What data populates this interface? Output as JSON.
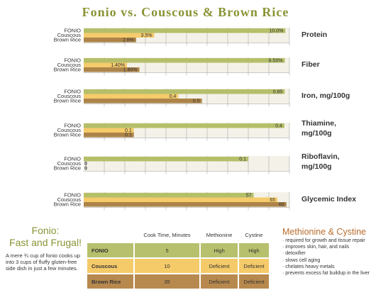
{
  "title": "Fonio vs. Couscous & Brown Rice",
  "colors": {
    "fonio": "#b5bf6a",
    "couscous": "#f5cb6c",
    "brown_rice": "#ad8449",
    "title": "#8a9434",
    "accent": "#b86c2c"
  },
  "chart_data": [
    {
      "type": "bar",
      "title": "Protein",
      "categories": [
        "FONIO",
        "Couscous",
        "Brown Rice"
      ],
      "values": [
        10.0,
        3.5,
        2.6
      ],
      "labels": [
        "10.0%",
        "3.5%",
        "2.6%"
      ],
      "xlim": [
        0,
        10.2
      ]
    },
    {
      "type": "bar",
      "title": "Fiber",
      "categories": [
        "FONIO",
        "Couscous",
        "Brown Rice"
      ],
      "values": [
        6.5,
        1.4,
        1.8
      ],
      "labels": [
        "6.50%",
        "1.40%",
        "1.80%"
      ],
      "xlim": [
        0,
        6.65
      ]
    },
    {
      "type": "bar",
      "title": "Iron, mg/100g",
      "categories": [
        "FONIO",
        "Couscous",
        "Brown Rice"
      ],
      "values": [
        0.85,
        0.4,
        0.5
      ],
      "labels": [
        "0.85",
        "0.4",
        "0.5"
      ],
      "xlim": [
        0,
        0.87
      ]
    },
    {
      "type": "bar",
      "title": "Thiamine, mg/100g",
      "categories": [
        "FONIO",
        "Couscous",
        "Brown Rice"
      ],
      "values": [
        0.4,
        0.1,
        0.1
      ],
      "labels": [
        "0.4",
        "0.1",
        "0.1"
      ],
      "xlim": [
        0,
        0.41
      ]
    },
    {
      "type": "bar",
      "title": "Riboflavin, mg/100g",
      "categories": [
        "FONIO",
        "Couscous",
        "Brown Rice"
      ],
      "values": [
        0.1,
        0,
        0
      ],
      "labels": [
        "0.1",
        "0",
        "0"
      ],
      "xlim": [
        0,
        0.125
      ]
    },
    {
      "type": "bar",
      "title": "Glycemic Index",
      "categories": [
        "FONIO",
        "Couscous",
        "Brown Rice"
      ],
      "values": [
        57,
        65,
        68
      ],
      "labels": [
        "57",
        "65",
        "68"
      ],
      "xlim": [
        0,
        69
      ]
    }
  ],
  "fonio_box": {
    "title": "Fonio:",
    "subtitle": "Fast and Frugal!",
    "text": "A mere ¾ cup of fonio cooks up into 3 cups of fluffy gluten-free side dish in just a few minutes."
  },
  "table": {
    "headers": [
      "",
      "Cook Time, Minutes",
      "Methionine",
      "Cystine"
    ],
    "rows": [
      [
        "FONIO",
        "5",
        "High",
        "High"
      ],
      [
        "Couscous",
        "10",
        "Deficient",
        "Deficient"
      ],
      [
        "Brown Rice",
        "35",
        "Deficient",
        "Deficient"
      ]
    ]
  },
  "methionine": {
    "title": "Methionine & Cystine",
    "items": [
      "required for growth and tissue repair",
      "improves skin, hair, and nails",
      "detoxifier",
      "slows cell aging",
      "chelates heavy metals",
      "prevents excess fat buildup in the liver"
    ]
  }
}
